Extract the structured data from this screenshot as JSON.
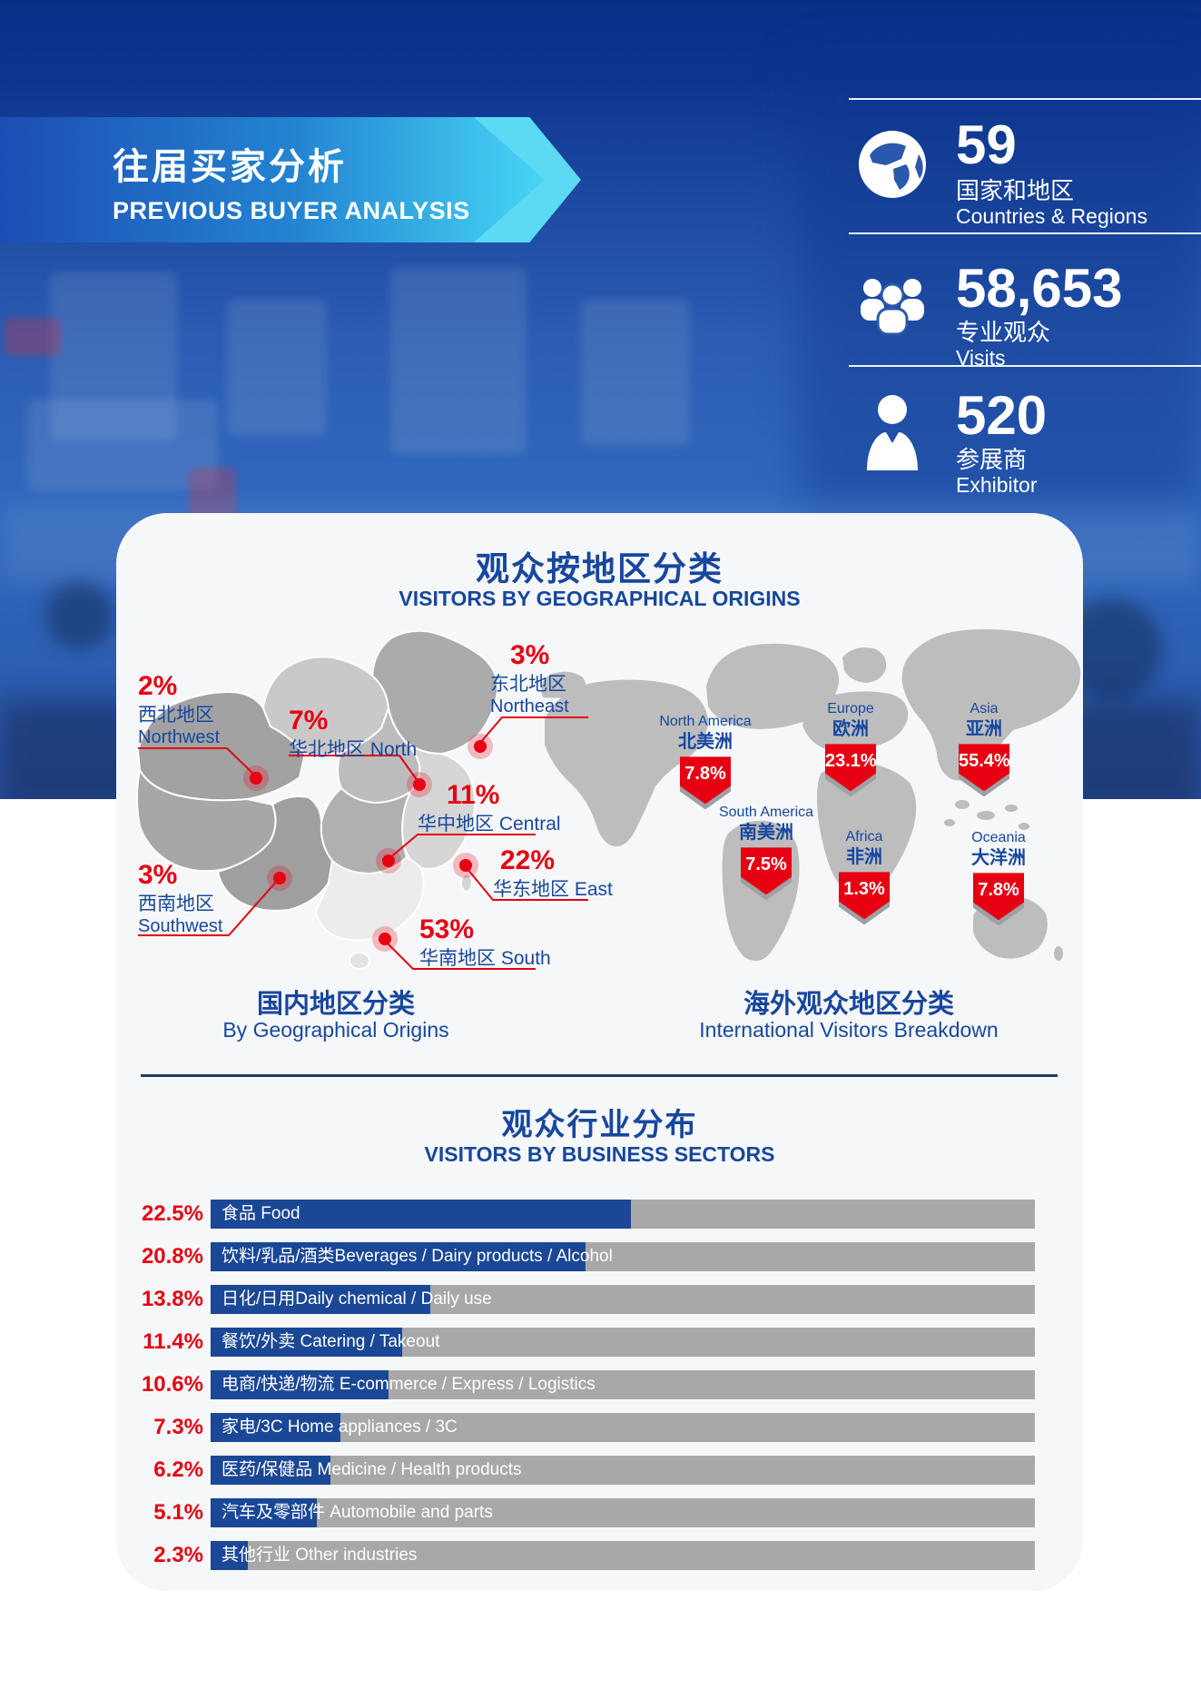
{
  "hero": {
    "banner": {
      "title_zh": "往届买家分析",
      "title_en": "PREVIOUS BUYER ANALYSIS"
    },
    "stats": [
      {
        "icon": "globe-icon",
        "value": "59",
        "label_zh": "国家和地区",
        "label_en": "Countries & Regions"
      },
      {
        "icon": "audience-icon",
        "value": "58,653",
        "label_zh": "专业观众",
        "label_en": "Visits"
      },
      {
        "icon": "exhibitor-icon",
        "value": "520",
        "label_zh": "参展商",
        "label_en": "Exhibitor"
      }
    ]
  },
  "sections": {
    "geo": {
      "title_zh": "观众按地区分类",
      "title_en": "VISITORS BY GEOGRAPHICAL ORIGINS"
    },
    "sectors": {
      "title_zh": "观众行业分布",
      "title_en": "VISITORS BY BUSINESS SECTORS"
    }
  },
  "colors": {
    "accent_red": "#e60012",
    "heading_blue": "#17479e",
    "bar_blue": "#1a4796",
    "bar_track_gray": "#a8a8a8",
    "hero_navy": "#0d3590",
    "banner_cyan": "#47d6f5",
    "card_bg": "#f6f7f8",
    "map_gray": "#bdbdbd"
  },
  "chart_data": [
    {
      "id": "china-regions",
      "type": "map-callouts",
      "title_zh": "国内地区分类",
      "title_en": "By Geographical Origins",
      "regions": [
        {
          "zh": "西北地区",
          "en": "Northwest",
          "value": 2,
          "label": "2%"
        },
        {
          "zh": "华北地区",
          "en": "North",
          "value": 7,
          "label": "7%"
        },
        {
          "zh": "东北地区",
          "en": "Northeast",
          "value": 3,
          "label": "3%"
        },
        {
          "zh": "华中地区",
          "en": "Central",
          "value": 11,
          "label": "11%"
        },
        {
          "zh": "华东地区",
          "en": "East",
          "value": 22,
          "label": "22%"
        },
        {
          "zh": "西南地区",
          "en": "Southwest",
          "value": 3,
          "label": "3%"
        },
        {
          "zh": "华南地区",
          "en": "South",
          "value": 53,
          "label": "53%"
        }
      ]
    },
    {
      "id": "world-continents",
      "type": "map-callouts",
      "title_zh": "海外观众地区分类",
      "title_en": "International Visitors Breakdown",
      "continents": [
        {
          "en": "North America",
          "zh": "北美洲",
          "value": 7.8,
          "label": "7.8%"
        },
        {
          "en": "Europe",
          "zh": "欧洲",
          "value": 23.1,
          "label": "23.1%"
        },
        {
          "en": "Asia",
          "zh": "亚洲",
          "value": 55.4,
          "label": "55.4%"
        },
        {
          "en": "South America",
          "zh": "南美洲",
          "value": 7.5,
          "label": "7.5%"
        },
        {
          "en": "Africa",
          "zh": "非洲",
          "value": 1.3,
          "label": "1.3%"
        },
        {
          "en": "Oceania",
          "zh": "大洋洲",
          "value": 7.8,
          "label": "7.8%"
        }
      ]
    },
    {
      "id": "business-sectors",
      "type": "bar",
      "orientation": "horizontal",
      "categories": [
        "食品 Food",
        "饮料/乳品/酒类Beverages / Dairy products / Alcohol",
        "日化/日用Daily chemical / Daily use",
        "餐饮/外卖 Catering / Takeout",
        "电商/快递/物流 E-commerce / Express / Logistics",
        "家电/3C Home appliances / 3C",
        "医药/保健品 Medicine / Health products",
        "汽车及零部件 Automobile and parts",
        "其他行业 Other industries"
      ],
      "values": [
        22.5,
        20.8,
        13.8,
        11.4,
        10.6,
        7.3,
        6.2,
        5.1,
        2.3
      ],
      "value_labels": [
        "22.5%",
        "20.8%",
        "13.8%",
        "11.4%",
        "10.6%",
        "7.3%",
        "6.2%",
        "5.1%",
        "2.3%"
      ],
      "fill_pct": [
        51,
        45.5,
        26.6,
        23.2,
        21.6,
        15.8,
        14.5,
        12.9,
        4.5
      ],
      "xlim": [
        0,
        44
      ],
      "grid": false,
      "legend": false
    }
  ]
}
